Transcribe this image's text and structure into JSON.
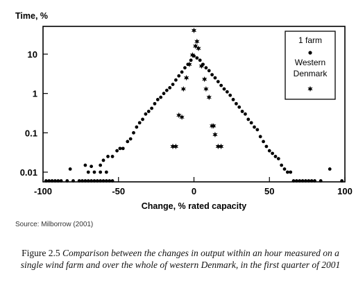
{
  "chart_data": {
    "type": "scatter",
    "title": "",
    "ylabel": "Time, %",
    "xlabel": "Change, % rated capacity",
    "xlim": [
      -100,
      100
    ],
    "ylim": [
      0.005,
      40
    ],
    "yscale": "log",
    "x_ticks": [
      "-100",
      "-50",
      "0",
      "50",
      "100"
    ],
    "y_ticks": [
      "0.01",
      "0.1",
      "1",
      "10"
    ],
    "legend_position": "top-right",
    "series": [
      {
        "name": "1 farm",
        "marker": "circle",
        "points": [
          [
            -98,
            0.006
          ],
          [
            -96,
            0.006
          ],
          [
            -94,
            0.006
          ],
          [
            -92,
            0.006
          ],
          [
            -90,
            0.006
          ],
          [
            -88,
            0.006
          ],
          [
            -84,
            0.006
          ],
          [
            -82,
            0.012
          ],
          [
            -80,
            0.006
          ],
          [
            -76,
            0.006
          ],
          [
            -74,
            0.006
          ],
          [
            -72,
            0.006
          ],
          [
            -70,
            0.006
          ],
          [
            -68,
            0.006
          ],
          [
            -66,
            0.006
          ],
          [
            -64,
            0.006
          ],
          [
            -62,
            0.006
          ],
          [
            -60,
            0.006
          ],
          [
            -58,
            0.006
          ],
          [
            -56,
            0.006
          ],
          [
            -54,
            0.006
          ],
          [
            -70,
            0.01
          ],
          [
            -66,
            0.01
          ],
          [
            -62,
            0.01
          ],
          [
            -58,
            0.01
          ],
          [
            -72,
            0.015
          ],
          [
            -68,
            0.014
          ],
          [
            -62,
            0.015
          ],
          [
            -60,
            0.02
          ],
          [
            -57,
            0.025
          ],
          [
            -54,
            0.025
          ],
          [
            -51,
            0.035
          ],
          [
            -49,
            0.04
          ],
          [
            -47,
            0.04
          ],
          [
            -44,
            0.06
          ],
          [
            -42,
            0.07
          ],
          [
            -40,
            0.1
          ],
          [
            -38,
            0.14
          ],
          [
            -36,
            0.18
          ],
          [
            -34,
            0.22
          ],
          [
            -32,
            0.3
          ],
          [
            -30,
            0.35
          ],
          [
            -28,
            0.42
          ],
          [
            -26,
            0.55
          ],
          [
            -24,
            0.7
          ],
          [
            -22,
            0.8
          ],
          [
            -20,
            1.0
          ],
          [
            -18,
            1.2
          ],
          [
            -16,
            1.4
          ],
          [
            -14,
            1.7
          ],
          [
            -12,
            2.2
          ],
          [
            -10,
            2.8
          ],
          [
            -8,
            3.5
          ],
          [
            -6,
            4.5
          ],
          [
            -4,
            5.5
          ],
          [
            -2,
            7.0
          ],
          [
            0,
            9.0
          ],
          [
            2,
            8.0
          ],
          [
            4,
            7.0
          ],
          [
            6,
            5.5
          ],
          [
            8,
            4.5
          ],
          [
            10,
            3.8
          ],
          [
            12,
            3.0
          ],
          [
            14,
            2.5
          ],
          [
            16,
            2.0
          ],
          [
            18,
            1.6
          ],
          [
            20,
            1.3
          ],
          [
            22,
            1.1
          ],
          [
            24,
            0.9
          ],
          [
            26,
            0.7
          ],
          [
            28,
            0.55
          ],
          [
            30,
            0.45
          ],
          [
            32,
            0.35
          ],
          [
            34,
            0.3
          ],
          [
            36,
            0.22
          ],
          [
            38,
            0.18
          ],
          [
            40,
            0.14
          ],
          [
            42,
            0.12
          ],
          [
            44,
            0.08
          ],
          [
            46,
            0.06
          ],
          [
            48,
            0.045
          ],
          [
            50,
            0.035
          ],
          [
            52,
            0.03
          ],
          [
            54,
            0.025
          ],
          [
            56,
            0.022
          ],
          [
            58,
            0.015
          ],
          [
            60,
            0.012
          ],
          [
            62,
            0.01
          ],
          [
            64,
            0.01
          ],
          [
            66,
            0.006
          ],
          [
            68,
            0.006
          ],
          [
            70,
            0.006
          ],
          [
            72,
            0.006
          ],
          [
            74,
            0.006
          ],
          [
            76,
            0.006
          ],
          [
            78,
            0.006
          ],
          [
            80,
            0.006
          ],
          [
            84,
            0.006
          ],
          [
            90,
            0.012
          ],
          [
            98,
            0.006
          ]
        ]
      },
      {
        "name": "Western Denmark",
        "marker": "star",
        "points": [
          [
            -14,
            0.045
          ],
          [
            -12,
            0.045
          ],
          [
            -10,
            0.28
          ],
          [
            -8,
            0.25
          ],
          [
            -7,
            1.3
          ],
          [
            -5,
            2.5
          ],
          [
            -3,
            5.5
          ],
          [
            -1,
            9.5
          ],
          [
            0,
            40
          ],
          [
            1,
            16
          ],
          [
            2,
            21
          ],
          [
            3,
            14
          ],
          [
            5,
            5.0
          ],
          [
            7,
            2.3
          ],
          [
            8,
            1.3
          ],
          [
            10,
            0.8
          ],
          [
            12,
            0.15
          ],
          [
            13,
            0.15
          ],
          [
            14,
            0.09
          ],
          [
            16,
            0.045
          ],
          [
            18,
            0.045
          ]
        ]
      }
    ]
  },
  "source_text": "Source: Milborrow (2001)",
  "caption": {
    "figure_label": "Figure 2.5",
    "text": "Comparison between the changes in output within an hour measured on a single wind farm and over the whole of western Denmark, in the first quarter of 2001"
  },
  "colors": {
    "marker": "#000000",
    "axis": "#000000"
  }
}
